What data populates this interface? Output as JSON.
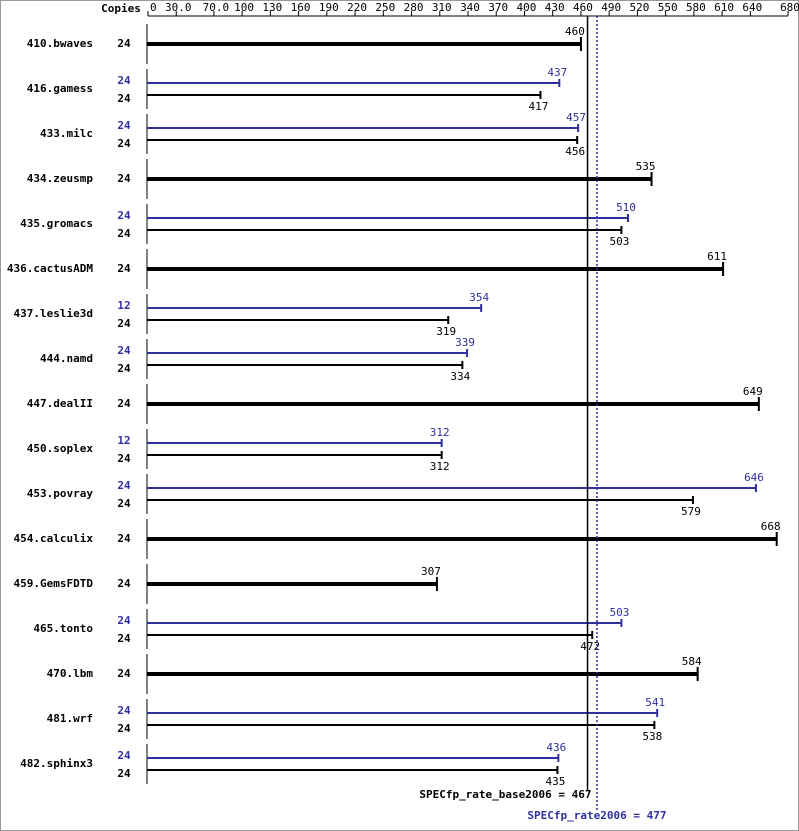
{
  "chart_data": {
    "type": "bar",
    "copies_header": "Copies",
    "categories": [
      "410.bwaves",
      "416.gamess",
      "433.milc",
      "434.zeusmp",
      "435.gromacs",
      "436.cactusADM",
      "437.leslie3d",
      "444.namd",
      "447.dealII",
      "450.soplex",
      "453.povray",
      "454.calculix",
      "459.GemsFDTD",
      "465.tonto",
      "470.lbm",
      "481.wrf",
      "482.sphinx3"
    ],
    "series": [
      {
        "color": "#000000",
        "copies": [
          24,
          24,
          24,
          24,
          24,
          24,
          24,
          24,
          24,
          24,
          24,
          24,
          24,
          24,
          24,
          24,
          24
        ],
        "values": [
          460,
          417,
          456,
          535,
          503,
          611,
          319,
          334,
          649,
          312,
          579,
          668,
          307,
          472,
          584,
          538,
          435
        ]
      },
      {
        "color": "#2f2f9f",
        "copies": [
          null,
          24,
          24,
          null,
          24,
          null,
          12,
          24,
          null,
          12,
          24,
          null,
          null,
          24,
          null,
          24,
          24
        ],
        "values": [
          null,
          437,
          457,
          null,
          510,
          null,
          354,
          339,
          null,
          312,
          646,
          null,
          null,
          503,
          null,
          541,
          436
        ]
      }
    ],
    "xlim": [
      0,
      680
    ],
    "xticks": [
      0,
      {
        "value": 30,
        "label": "30.0"
      },
      {
        "value": 70,
        "label": "70.0"
      },
      100,
      130,
      160,
      190,
      220,
      250,
      280,
      310,
      340,
      370,
      400,
      430,
      460,
      490,
      520,
      550,
      580,
      610,
      640,
      680
    ],
    "base_metric": {
      "label": "SPECfp_rate_base2006 = 467",
      "value": 467
    },
    "peak_metric": {
      "label": "SPECfp_rate2006 = 477",
      "value": 477
    }
  }
}
